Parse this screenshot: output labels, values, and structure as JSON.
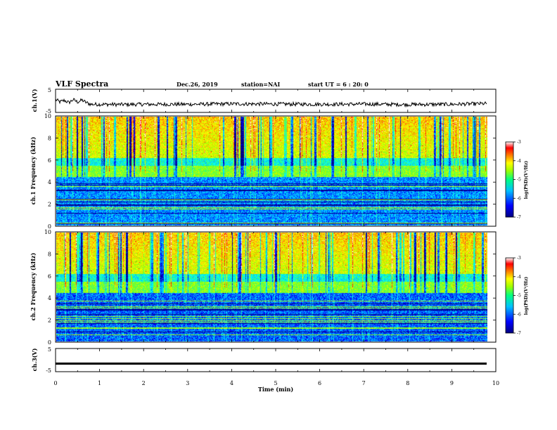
{
  "header": {
    "title": "VLF Spectra",
    "date": "Dec.26, 2019",
    "station": "station=NAI",
    "start": "start UT = 6 : 20: 0"
  },
  "chart_data": [
    {
      "type": "line",
      "name": "ch1-waveform",
      "ylabel": "ch.1(V)",
      "ylim": [
        -5,
        5
      ],
      "yticks": [
        "5",
        "-5"
      ],
      "xlim": [
        0,
        10
      ],
      "x": [
        0,
        0.1,
        0.2,
        0.3,
        0.4,
        0.5,
        0.6,
        0.7,
        0.8,
        1,
        1.5,
        2,
        3,
        4,
        5,
        6,
        7,
        8,
        9,
        9.5,
        9.8
      ],
      "y": [
        0.5,
        -0.5,
        0.2,
        -0.8,
        0.5,
        -0.5,
        0.3,
        -0.8,
        -1.5,
        -1.5,
        -1.6,
        -1.5,
        -1.5,
        -1.3,
        -1.4,
        -1.5,
        -1.4,
        -1.6,
        -1.5,
        -1.3,
        -1.2
      ]
    },
    {
      "type": "heatmap",
      "name": "ch1-spectrogram",
      "ylabel": "ch.1 Frequency (kHz)",
      "ylim": [
        0,
        10
      ],
      "yticks": [
        "10",
        "8",
        "6",
        "4",
        "2",
        "0"
      ],
      "xlim": [
        0,
        10
      ],
      "colorbar": {
        "label": "log(PSD)(V²/Hz)",
        "min": -7,
        "max": -3,
        "ticks": [
          "-3",
          "-4",
          "-5",
          "-6",
          "-7"
        ]
      }
    },
    {
      "type": "heatmap",
      "name": "ch2-spectrogram",
      "ylabel": "ch.2 Frequency (kHz)",
      "ylim": [
        0,
        10
      ],
      "yticks": [
        "10",
        "8",
        "6",
        "4",
        "2",
        "0"
      ],
      "xlim": [
        0,
        10
      ],
      "colorbar": {
        "label": "log(PSD)(V²/Hz)",
        "min": -7,
        "max": -3,
        "ticks": [
          "-3",
          "-4",
          "-5",
          "-6",
          "-7"
        ]
      }
    },
    {
      "type": "line",
      "name": "ch3-waveform",
      "ylabel": "ch.3(V)",
      "ylim": [
        -5,
        5
      ],
      "yticks": [
        "5",
        "-5"
      ],
      "xlim": [
        0,
        10
      ],
      "x": [
        0,
        9.8
      ],
      "y": [
        -1.5,
        -1.5
      ]
    }
  ],
  "xaxis": {
    "label": "Time (min)",
    "ticks": [
      "0",
      "1",
      "2",
      "3",
      "4",
      "5",
      "6",
      "7",
      "8",
      "9",
      "10"
    ]
  },
  "colors": {
    "colormap": [
      "#000080",
      "#0000ff",
      "#00a0ff",
      "#00ffff",
      "#40ff60",
      "#a0ff00",
      "#ffff00",
      "#ff8000",
      "#ff0000",
      "#ffffff"
    ]
  }
}
